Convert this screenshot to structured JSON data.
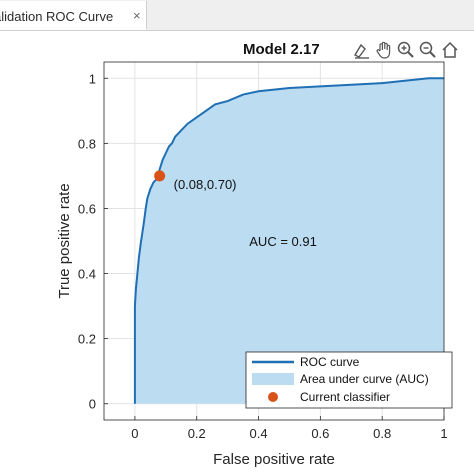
{
  "tab": {
    "label": "alidation ROC Curve",
    "close": "×"
  },
  "figure": {
    "title": "Model 2.17"
  },
  "toolbar": {
    "icons": [
      "data-tips-icon",
      "pan-hand-icon",
      "zoom-in-icon",
      "zoom-out-icon",
      "home-icon"
    ]
  },
  "colors": {
    "curve": "#1f6fb4",
    "area": "#bcdcf2",
    "marker": "#d95319"
  },
  "chart_data": {
    "type": "area",
    "xlabel": "False positive rate",
    "ylabel": "True positive rate",
    "xlim": [
      -0.1,
      1.0
    ],
    "ylim": [
      -0.05,
      1.05
    ],
    "xticks": [
      0,
      0.2,
      0.4,
      0.6,
      0.8,
      1
    ],
    "yticks": [
      0,
      0.2,
      0.4,
      0.6,
      0.8,
      1
    ],
    "xtick_labels": [
      "0",
      "0.2",
      "0.4",
      "0.6",
      "0.8",
      "1"
    ],
    "ytick_labels": [
      "0",
      "0.2",
      "0.4",
      "0.6",
      "0.8",
      "1"
    ],
    "grid": true,
    "legend_placement": "bottom-right",
    "series": [
      {
        "name": "ROC curve",
        "x": [
          0,
          0,
          0.003,
          0.008,
          0.013,
          0.02,
          0.028,
          0.035,
          0.04,
          0.05,
          0.06,
          0.07,
          0.075,
          0.08,
          0.09,
          0.1,
          0.11,
          0.12,
          0.13,
          0.15,
          0.17,
          0.2,
          0.23,
          0.26,
          0.3,
          0.35,
          0.4,
          0.5,
          0.6,
          0.7,
          0.8,
          0.9,
          0.95,
          1.0
        ],
        "y": [
          0,
          0.3,
          0.35,
          0.4,
          0.45,
          0.5,
          0.55,
          0.6,
          0.63,
          0.66,
          0.68,
          0.69,
          0.7,
          0.72,
          0.75,
          0.77,
          0.79,
          0.8,
          0.82,
          0.84,
          0.86,
          0.88,
          0.9,
          0.92,
          0.93,
          0.95,
          0.96,
          0.97,
          0.975,
          0.98,
          0.985,
          0.995,
          1.0,
          1.0
        ]
      }
    ],
    "area_label": "Area under curve (AUC)",
    "current_classifier": {
      "name": "Current classifier",
      "x": 0.08,
      "y": 0.7,
      "label": "(0.08,0.70)"
    },
    "annotation": "AUC = 0.91"
  }
}
